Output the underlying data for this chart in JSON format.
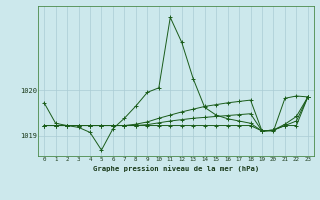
{
  "title": "Graphe pression niveau de la mer (hPa)",
  "background_color": "#cce8ec",
  "grid_color": "#aaccd4",
  "line_color": "#1a5c1a",
  "x_min": -0.5,
  "x_max": 23.5,
  "y_min": 1018.55,
  "y_max": 1021.85,
  "yticks": [
    1019,
    1020
  ],
  "series": [
    [
      1019.72,
      1019.27,
      1019.22,
      1019.18,
      1019.07,
      1018.68,
      1019.15,
      1019.38,
      1019.65,
      1019.95,
      1020.05,
      1021.6,
      1021.05,
      1020.25,
      1019.62,
      1019.45,
      1019.37,
      1019.32,
      1019.27,
      1019.1,
      1019.1,
      1019.82,
      1019.87,
      1019.85
    ],
    [
      1019.22,
      1019.22,
      1019.22,
      1019.22,
      1019.22,
      1019.22,
      1019.22,
      1019.22,
      1019.25,
      1019.3,
      1019.38,
      1019.45,
      1019.52,
      1019.58,
      1019.64,
      1019.68,
      1019.72,
      1019.75,
      1019.78,
      1019.1,
      1019.12,
      1019.25,
      1019.42,
      1019.85
    ],
    [
      1019.22,
      1019.22,
      1019.22,
      1019.22,
      1019.22,
      1019.22,
      1019.22,
      1019.22,
      1019.22,
      1019.24,
      1019.28,
      1019.32,
      1019.35,
      1019.38,
      1019.4,
      1019.42,
      1019.44,
      1019.46,
      1019.48,
      1019.1,
      1019.12,
      1019.22,
      1019.32,
      1019.85
    ],
    [
      1019.22,
      1019.22,
      1019.22,
      1019.22,
      1019.22,
      1019.22,
      1019.22,
      1019.22,
      1019.22,
      1019.22,
      1019.22,
      1019.22,
      1019.22,
      1019.22,
      1019.22,
      1019.22,
      1019.22,
      1019.22,
      1019.22,
      1019.1,
      1019.12,
      1019.22,
      1019.22,
      1019.85
    ]
  ]
}
